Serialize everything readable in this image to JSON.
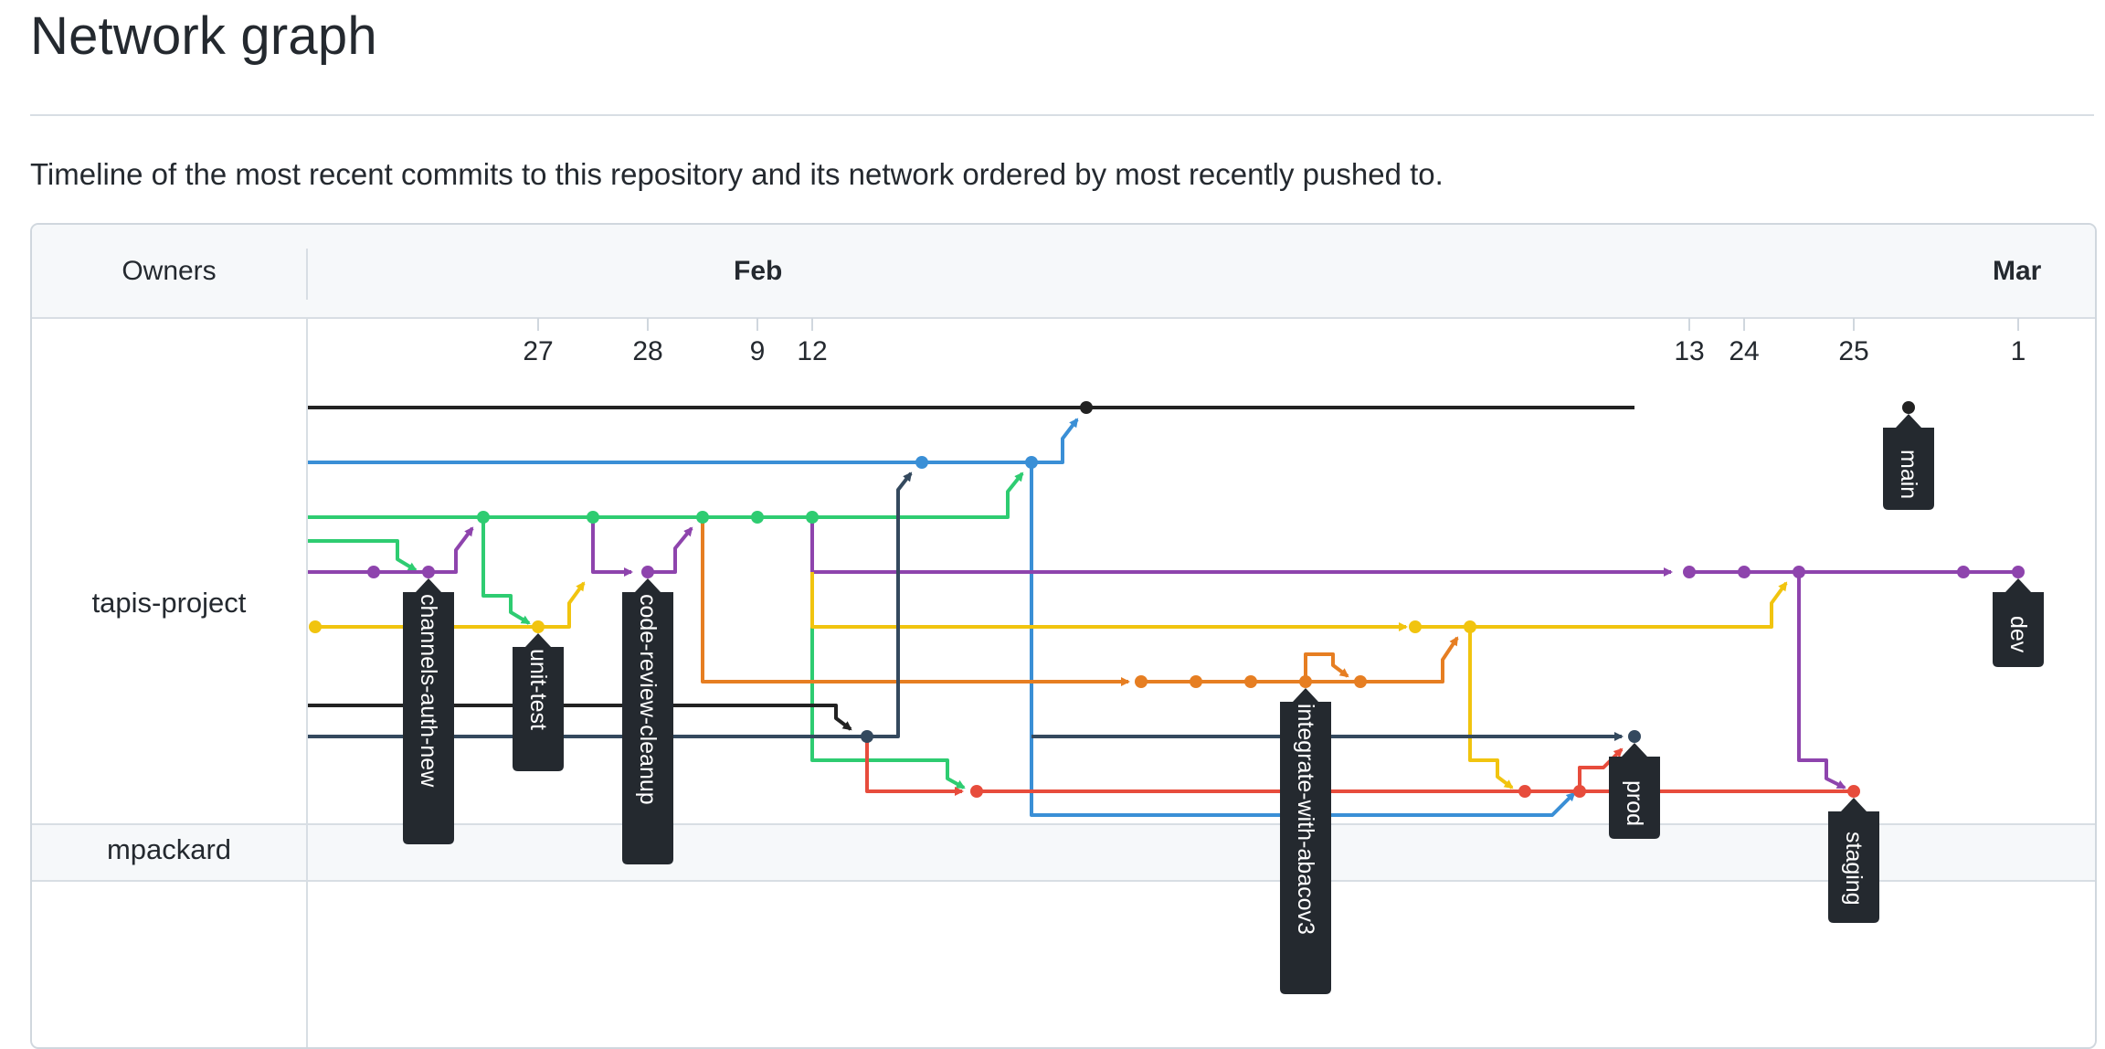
{
  "page": {
    "title": "Network graph",
    "subtitle": "Timeline of the most recent commits to this repository and its network ordered by most recently pushed to."
  },
  "graph": {
    "owners_header": "Owners",
    "months": [
      "Feb",
      "Mar"
    ],
    "days": [
      "27",
      "28",
      "9",
      "12",
      "13",
      "24",
      "25",
      "1"
    ],
    "owners": [
      "tapis-project",
      "mpackard"
    ],
    "colors": {
      "black": "#222222",
      "blue": "#3a8fd6",
      "green": "#2ecc71",
      "purple": "#8e44ad",
      "yellow": "#f1c40f",
      "orange": "#e67e22",
      "navy": "#34495e",
      "red": "#e74c3c",
      "tag_bg": "#24292f"
    },
    "branches": [
      "channels-auth-new",
      "unit-test",
      "code-review-cleanup",
      "integrate-with-abacov3",
      "main",
      "dev",
      "prod",
      "staging"
    ]
  }
}
